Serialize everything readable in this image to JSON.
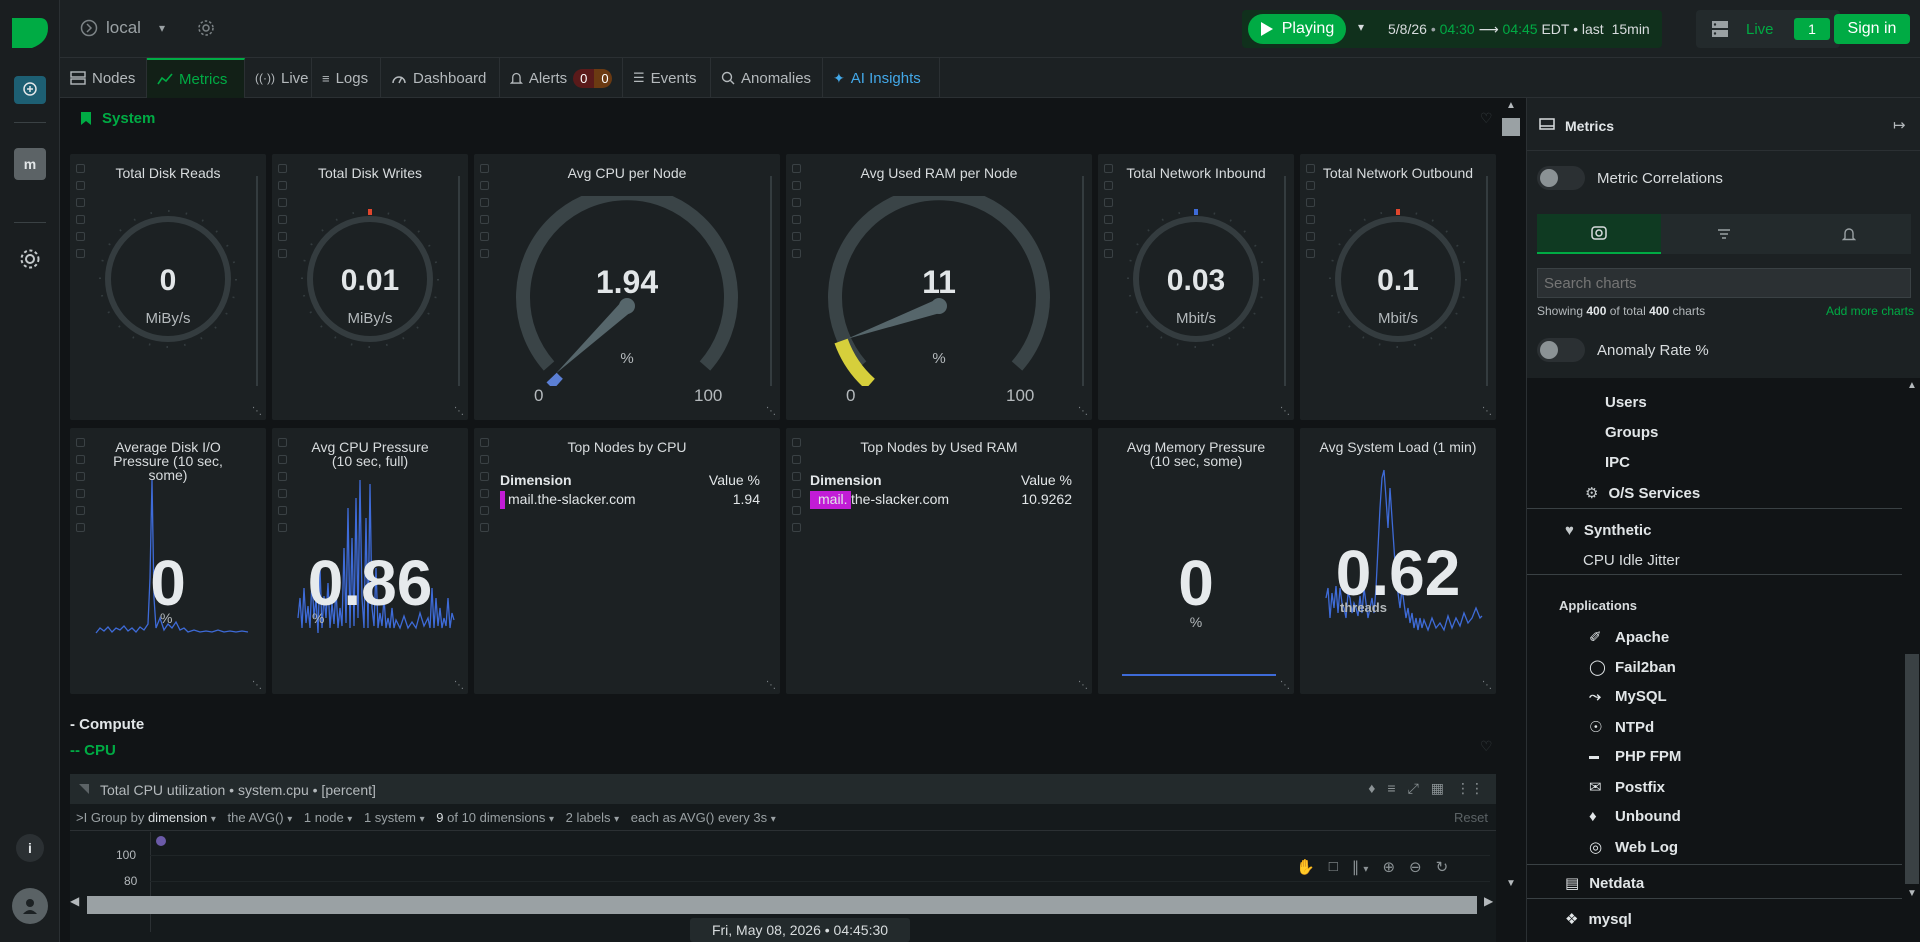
{
  "rail": {
    "icons": [
      "netdata-logo-icon",
      "chat-icon",
      "space-icon",
      "settings-icon",
      "info-icon",
      "user-avatar-icon"
    ],
    "space_label": "m"
  },
  "topbar": {
    "node_name": "local",
    "playing_label": "Playing",
    "date": "5/8/26",
    "from_time": "04:30",
    "to_time": "04:45",
    "tz": "EDT",
    "last_label": "• last",
    "duration": "15min",
    "live_label": "Live",
    "live_count": "1",
    "sign_in": "Sign in"
  },
  "tabs": [
    {
      "label": "Nodes",
      "icon": "nodes-icon"
    },
    {
      "label": "Metrics",
      "icon": "metrics-icon",
      "active": true
    },
    {
      "label": "Live",
      "icon": "live-icon"
    },
    {
      "label": "Logs",
      "icon": "logs-icon"
    },
    {
      "label": "Dashboard",
      "icon": "dashboard-icon"
    },
    {
      "label": "Alerts",
      "icon": "bell-icon",
      "badge_a": "0",
      "badge_b": "0"
    },
    {
      "label": "Events",
      "icon": "events-icon"
    },
    {
      "label": "Anomalies",
      "icon": "anomalies-icon"
    },
    {
      "label": "AI Insights",
      "icon": "sparkle-icon"
    }
  ],
  "section": {
    "title": "System",
    "compute": "- Compute",
    "cpu": "-- CPU"
  },
  "gauges": [
    {
      "title": "Total Disk Reads",
      "value": "0",
      "unit": "MiBy/s"
    },
    {
      "title": "Total Disk Writes",
      "value": "0.01",
      "unit": "MiBy/s"
    },
    {
      "title": "Avg CPU per Node",
      "value": "1.94",
      "unit": "%",
      "min": "0",
      "max": "100",
      "level": 0.0194
    },
    {
      "title": "Avg Used RAM per Node",
      "value": "11",
      "unit": "%",
      "min": "0",
      "max": "100",
      "level": 0.11
    },
    {
      "title": "Total Network Inbound",
      "value": "0.03",
      "unit": "Mbit/s"
    },
    {
      "title": "Total Network Outbound",
      "value": "0.1",
      "unit": "Mbit/s"
    }
  ],
  "row2": [
    {
      "title": "Average Disk I/O Pressure (10 sec, some)",
      "value": "0",
      "unit": "%"
    },
    {
      "title": "Avg CPU Pressure (10 sec, full)",
      "value": "0.86",
      "unit": "%"
    },
    {
      "title": "Top Nodes by CPU",
      "col1": "Dimension",
      "col2": "Value %",
      "node": "mail.the-slacker.com",
      "val": "1.94"
    },
    {
      "title": "Top Nodes by Used RAM",
      "col1": "Dimension",
      "col2": "Value %",
      "node_hl": "mail.",
      "node_rest": "the-slacker.com",
      "val": "10.9262"
    },
    {
      "title": "Avg Memory Pressure (10 sec, some)",
      "value": "0",
      "unit": "%"
    },
    {
      "title": "Avg System Load (1 min)",
      "value": "0.62",
      "unit": "threads"
    }
  ],
  "cpu_chart": {
    "title": "Total CPU utilization • system.cpu • [percent]",
    "group_by_prefix": "Group by",
    "group_by": "dimension",
    "agg": "the AVG()",
    "nodes": "1 node",
    "systems": "1 system",
    "dims_count": "9",
    "dims_label": "of 10 dimensions",
    "labels": "2 labels",
    "each_as": "each as AVG() every 3s",
    "reset": "Reset",
    "y_ticks": [
      "100",
      "80"
    ],
    "timestamp": "Fri, May 08, 2026 • 04:45:30"
  },
  "panel": {
    "title": "Metrics",
    "metric_correlations": "Metric Correlations",
    "search_placeholder": "Search charts",
    "showing_prefix": "Showing",
    "showing_count": "400",
    "showing_mid": "of total",
    "showing_total": "400",
    "showing_suffix": "charts",
    "add_more": "Add more charts",
    "anomaly_rate": "Anomaly Rate %",
    "tree_sub": [
      "Users",
      "Groups",
      "IPC"
    ],
    "os_services": "O/S Services",
    "synthetic": "Synthetic",
    "cpu_idle_jitter": "CPU Idle Jitter",
    "applications": "Applications",
    "apps": [
      {
        "label": "Apache",
        "icon": "feather-icon"
      },
      {
        "label": "Fail2ban",
        "icon": "shield-icon"
      },
      {
        "label": "MySQL",
        "icon": "dolphin-icon"
      },
      {
        "label": "NTPd",
        "icon": "clock-pin-icon"
      },
      {
        "label": "PHP FPM",
        "icon": "php-icon"
      },
      {
        "label": "Postfix",
        "icon": "mail-icon"
      },
      {
        "label": "Unbound",
        "icon": "tag-icon"
      },
      {
        "label": "Web Log",
        "icon": "globe-icon"
      }
    ],
    "netdata": "Netdata",
    "mysql": "mysql"
  },
  "colors": {
    "accent": "#00ab44",
    "line": "#3e6bd8",
    "ram_arc": "#d6cf3b",
    "highlight": "#c21cd6"
  }
}
